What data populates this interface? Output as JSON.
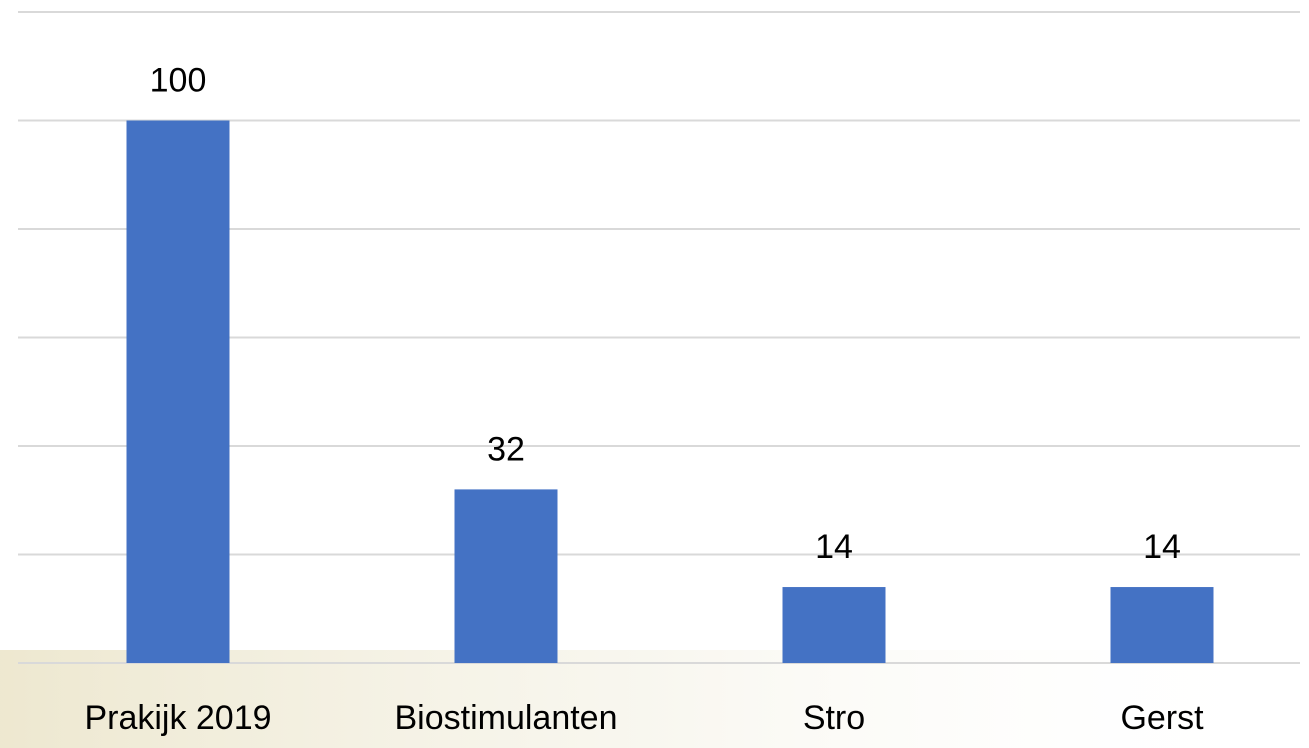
{
  "chart_data": {
    "type": "bar",
    "categories": [
      "Prakijk 2019",
      "Biostimulanten",
      "Stro",
      "Gerst"
    ],
    "values": [
      100,
      32,
      14,
      14
    ],
    "color": "#4472c4",
    "ylim": [
      0,
      120
    ],
    "yticks": [
      0,
      20,
      40,
      60,
      80,
      100,
      120
    ],
    "grid": true
  }
}
